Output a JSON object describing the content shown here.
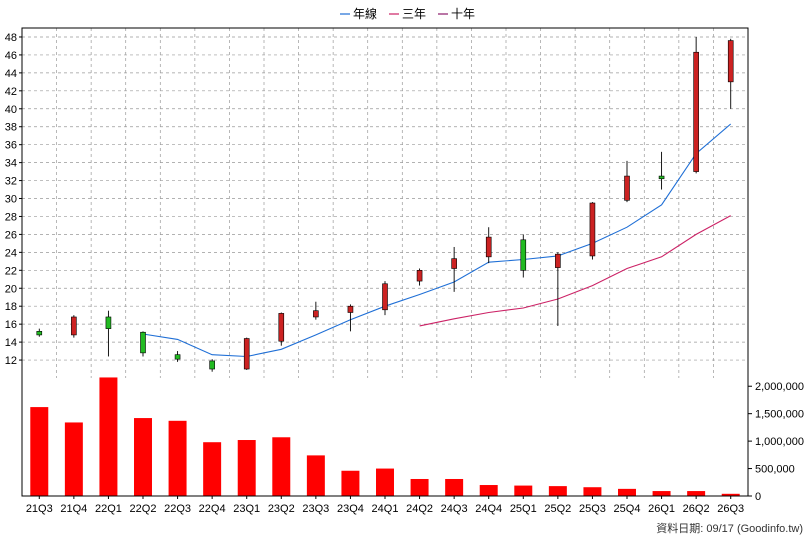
{
  "chart_data": {
    "type": "candlestick",
    "legend": [
      {
        "label": "年線",
        "color": "#1f6fd6"
      },
      {
        "label": "三年",
        "color": "#cc2266"
      },
      {
        "label": "十年",
        "color": "#8b1a6b"
      }
    ],
    "categories": [
      "21Q3",
      "21Q4",
      "22Q1",
      "22Q2",
      "22Q3",
      "22Q4",
      "23Q1",
      "23Q2",
      "23Q3",
      "23Q4",
      "24Q1",
      "24Q2",
      "24Q3",
      "24Q4",
      "25Q1",
      "25Q2",
      "25Q3",
      "25Q4",
      "26Q1",
      "26Q2",
      "26Q3"
    ],
    "price_axis": {
      "min": 10,
      "max": 49,
      "ticks": [
        12,
        14,
        16,
        18,
        20,
        22,
        24,
        26,
        28,
        30,
        32,
        34,
        36,
        38,
        40,
        42,
        44,
        46,
        48
      ]
    },
    "candles": [
      {
        "open": 15.2,
        "close": 14.8,
        "high": 15.5,
        "low": 14.6
      },
      {
        "open": 14.8,
        "close": 16.8,
        "high": 17.0,
        "low": 14.5
      },
      {
        "open": 16.8,
        "close": 15.5,
        "high": 17.5,
        "low": 12.4
      },
      {
        "open": 15.1,
        "close": 12.8,
        "high": 15.2,
        "low": 12.4
      },
      {
        "open": 12.6,
        "close": 12.1,
        "high": 13.0,
        "low": 11.8
      },
      {
        "open": 11.9,
        "close": 11.0,
        "high": 12.1,
        "low": 10.7
      },
      {
        "open": 11.0,
        "close": 14.4,
        "high": 14.5,
        "low": 10.9
      },
      {
        "open": 14.1,
        "close": 17.2,
        "high": 17.3,
        "low": 13.6
      },
      {
        "open": 16.8,
        "close": 17.5,
        "high": 18.5,
        "low": 16.5
      },
      {
        "open": 17.3,
        "close": 18.0,
        "high": 18.2,
        "low": 15.2
      },
      {
        "open": 17.6,
        "close": 20.5,
        "high": 20.8,
        "low": 17.0
      },
      {
        "open": 20.8,
        "close": 22.0,
        "high": 22.2,
        "low": 20.3
      },
      {
        "open": 22.2,
        "close": 23.3,
        "high": 24.6,
        "low": 19.6
      },
      {
        "open": 23.5,
        "close": 25.7,
        "high": 26.8,
        "low": 22.8
      },
      {
        "open": 25.4,
        "close": 22.0,
        "high": 26.0,
        "low": 21.2
      },
      {
        "open": 22.3,
        "close": 23.8,
        "high": 24.0,
        "low": 15.8
      },
      {
        "open": 23.6,
        "close": 29.5,
        "high": 29.6,
        "low": 23.2
      },
      {
        "open": 29.8,
        "close": 32.5,
        "high": 34.2,
        "low": 29.6
      },
      {
        "open": 32.5,
        "close": 32.2,
        "high": 35.2,
        "low": 31.0
      },
      {
        "open": 33.0,
        "close": 46.3,
        "high": 48.0,
        "low": 32.8
      },
      {
        "open": 43.0,
        "close": 47.6,
        "high": 47.8,
        "low": 40.0
      }
    ],
    "series": [
      {
        "name": "年線",
        "values": [
          null,
          null,
          null,
          14.9,
          14.3,
          12.6,
          12.4,
          13.2,
          14.8,
          16.5,
          18.0,
          19.3,
          20.7,
          22.9,
          23.2,
          23.6,
          25.0,
          26.8,
          29.3,
          35.0,
          38.3
        ]
      },
      {
        "name": "三年",
        "values": [
          null,
          null,
          null,
          null,
          null,
          null,
          null,
          null,
          null,
          null,
          null,
          15.8,
          16.6,
          17.3,
          17.8,
          18.8,
          20.3,
          22.2,
          23.5,
          26.0,
          28.1
        ]
      }
    ],
    "volume": {
      "values": [
        1620000,
        1340000,
        2160000,
        1420000,
        1370000,
        980000,
        1020000,
        1070000,
        740000,
        460000,
        500000,
        310000,
        310000,
        200000,
        190000,
        180000,
        160000,
        130000,
        90000,
        90000,
        40000
      ],
      "axis": {
        "min": 0,
        "max": 2150000,
        "ticks": [
          0,
          500000,
          1000000,
          1500000,
          2000000
        ],
        "tick_labels": [
          "0",
          "500,000",
          "1,000,000",
          "1,500,000",
          "2,000,000"
        ]
      }
    },
    "colors": {
      "up": "#cc2222",
      "down": "#22bb22",
      "volume": "#ff0000",
      "grid": "#999999"
    },
    "grid": true,
    "legend_position": "top-center",
    "credit": "資料日期: 09/17 (Goodinfo.tw)"
  }
}
